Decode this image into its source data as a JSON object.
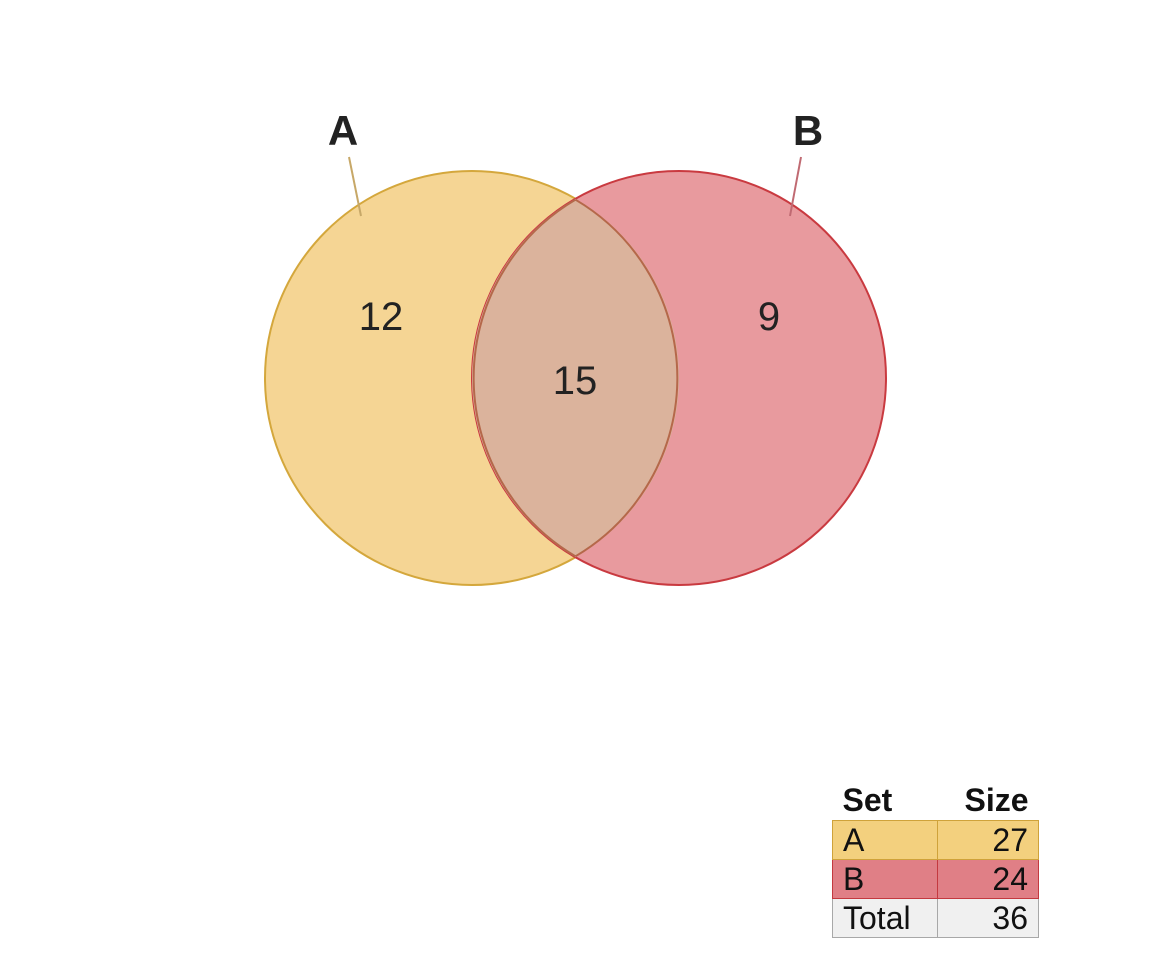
{
  "sets": [
    {
      "name": "A",
      "size": 27,
      "only_count": 12,
      "fill": "#f5d594",
      "stroke": "#d4a73c",
      "leader": "#c7a868"
    },
    {
      "name": "B",
      "size": 24,
      "only_count": 9,
      "fill": "#e89a9e",
      "stroke": "#c93a40",
      "leader": "#c06a72"
    }
  ],
  "intersection": {
    "label": "15",
    "fill": "#dbb39c",
    "stroke": "#b5684a"
  },
  "regions": {
    "a_only": "12",
    "b_only": "9",
    "a_and_b": "15"
  },
  "table": {
    "header_set": "Set",
    "header_size": "Size",
    "rows": [
      {
        "set": "A",
        "size": "27",
        "color": "#f3d07e"
      },
      {
        "set": "B",
        "size": "24",
        "color": "#e07f86"
      },
      {
        "set": "Total",
        "size": "36",
        "color": "#f0f0f0"
      }
    ]
  }
}
